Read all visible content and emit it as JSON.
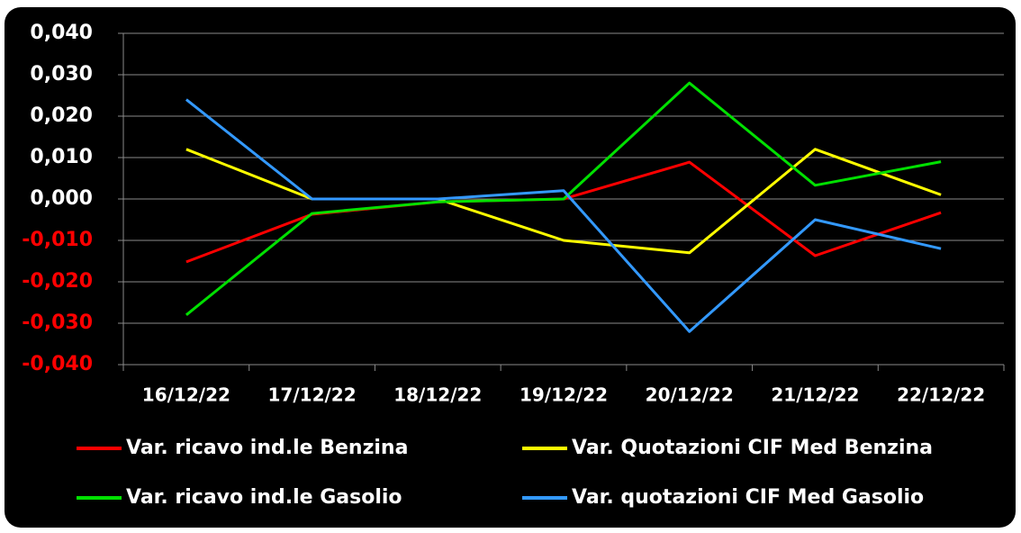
{
  "chart_data": {
    "type": "line",
    "categories": [
      "16/12/22",
      "17/12/22",
      "18/12/22",
      "19/12/22",
      "20/12/22",
      "21/12/22",
      "22/12/22"
    ],
    "series": [
      {
        "name": "Var. ricavo ind.le Benzina",
        "color": "#ff0000",
        "values": [
          -0.0152,
          -0.0037,
          -0.0007,
          0.0,
          0.0089,
          -0.0137,
          -0.0033
        ]
      },
      {
        "name": "Var. Quotazioni CIF Med Benzina",
        "color": "#ffff00",
        "values": [
          0.012,
          0.0,
          0.0,
          -0.01,
          -0.013,
          0.012,
          0.001
        ]
      },
      {
        "name": "Var. ricavo ind.le Gasolio",
        "color": "#00e000",
        "values": [
          -0.028,
          -0.0035,
          -0.0007,
          0.0,
          0.028,
          0.0033,
          0.009
        ]
      },
      {
        "name": "Var. quotazioni CIF Med Gasolio",
        "color": "#3399ff",
        "values": [
          0.024,
          0.0,
          0.0,
          0.002,
          -0.032,
          -0.005,
          -0.012
        ]
      }
    ],
    "ylim": [
      -0.04,
      0.04
    ],
    "yticks": [
      {
        "value": 0.04,
        "label": "0,040"
      },
      {
        "value": 0.03,
        "label": "0,030"
      },
      {
        "value": 0.02,
        "label": "0,020"
      },
      {
        "value": 0.01,
        "label": "0,010"
      },
      {
        "value": 0,
        "label": "0,000"
      },
      {
        "value": -0.01,
        "label": "-0,010"
      },
      {
        "value": -0.02,
        "label": "-0,020"
      },
      {
        "value": -0.03,
        "label": "-0,030"
      },
      {
        "value": -0.04,
        "label": "-0,040"
      }
    ],
    "grid": true,
    "legend": "bottom"
  }
}
